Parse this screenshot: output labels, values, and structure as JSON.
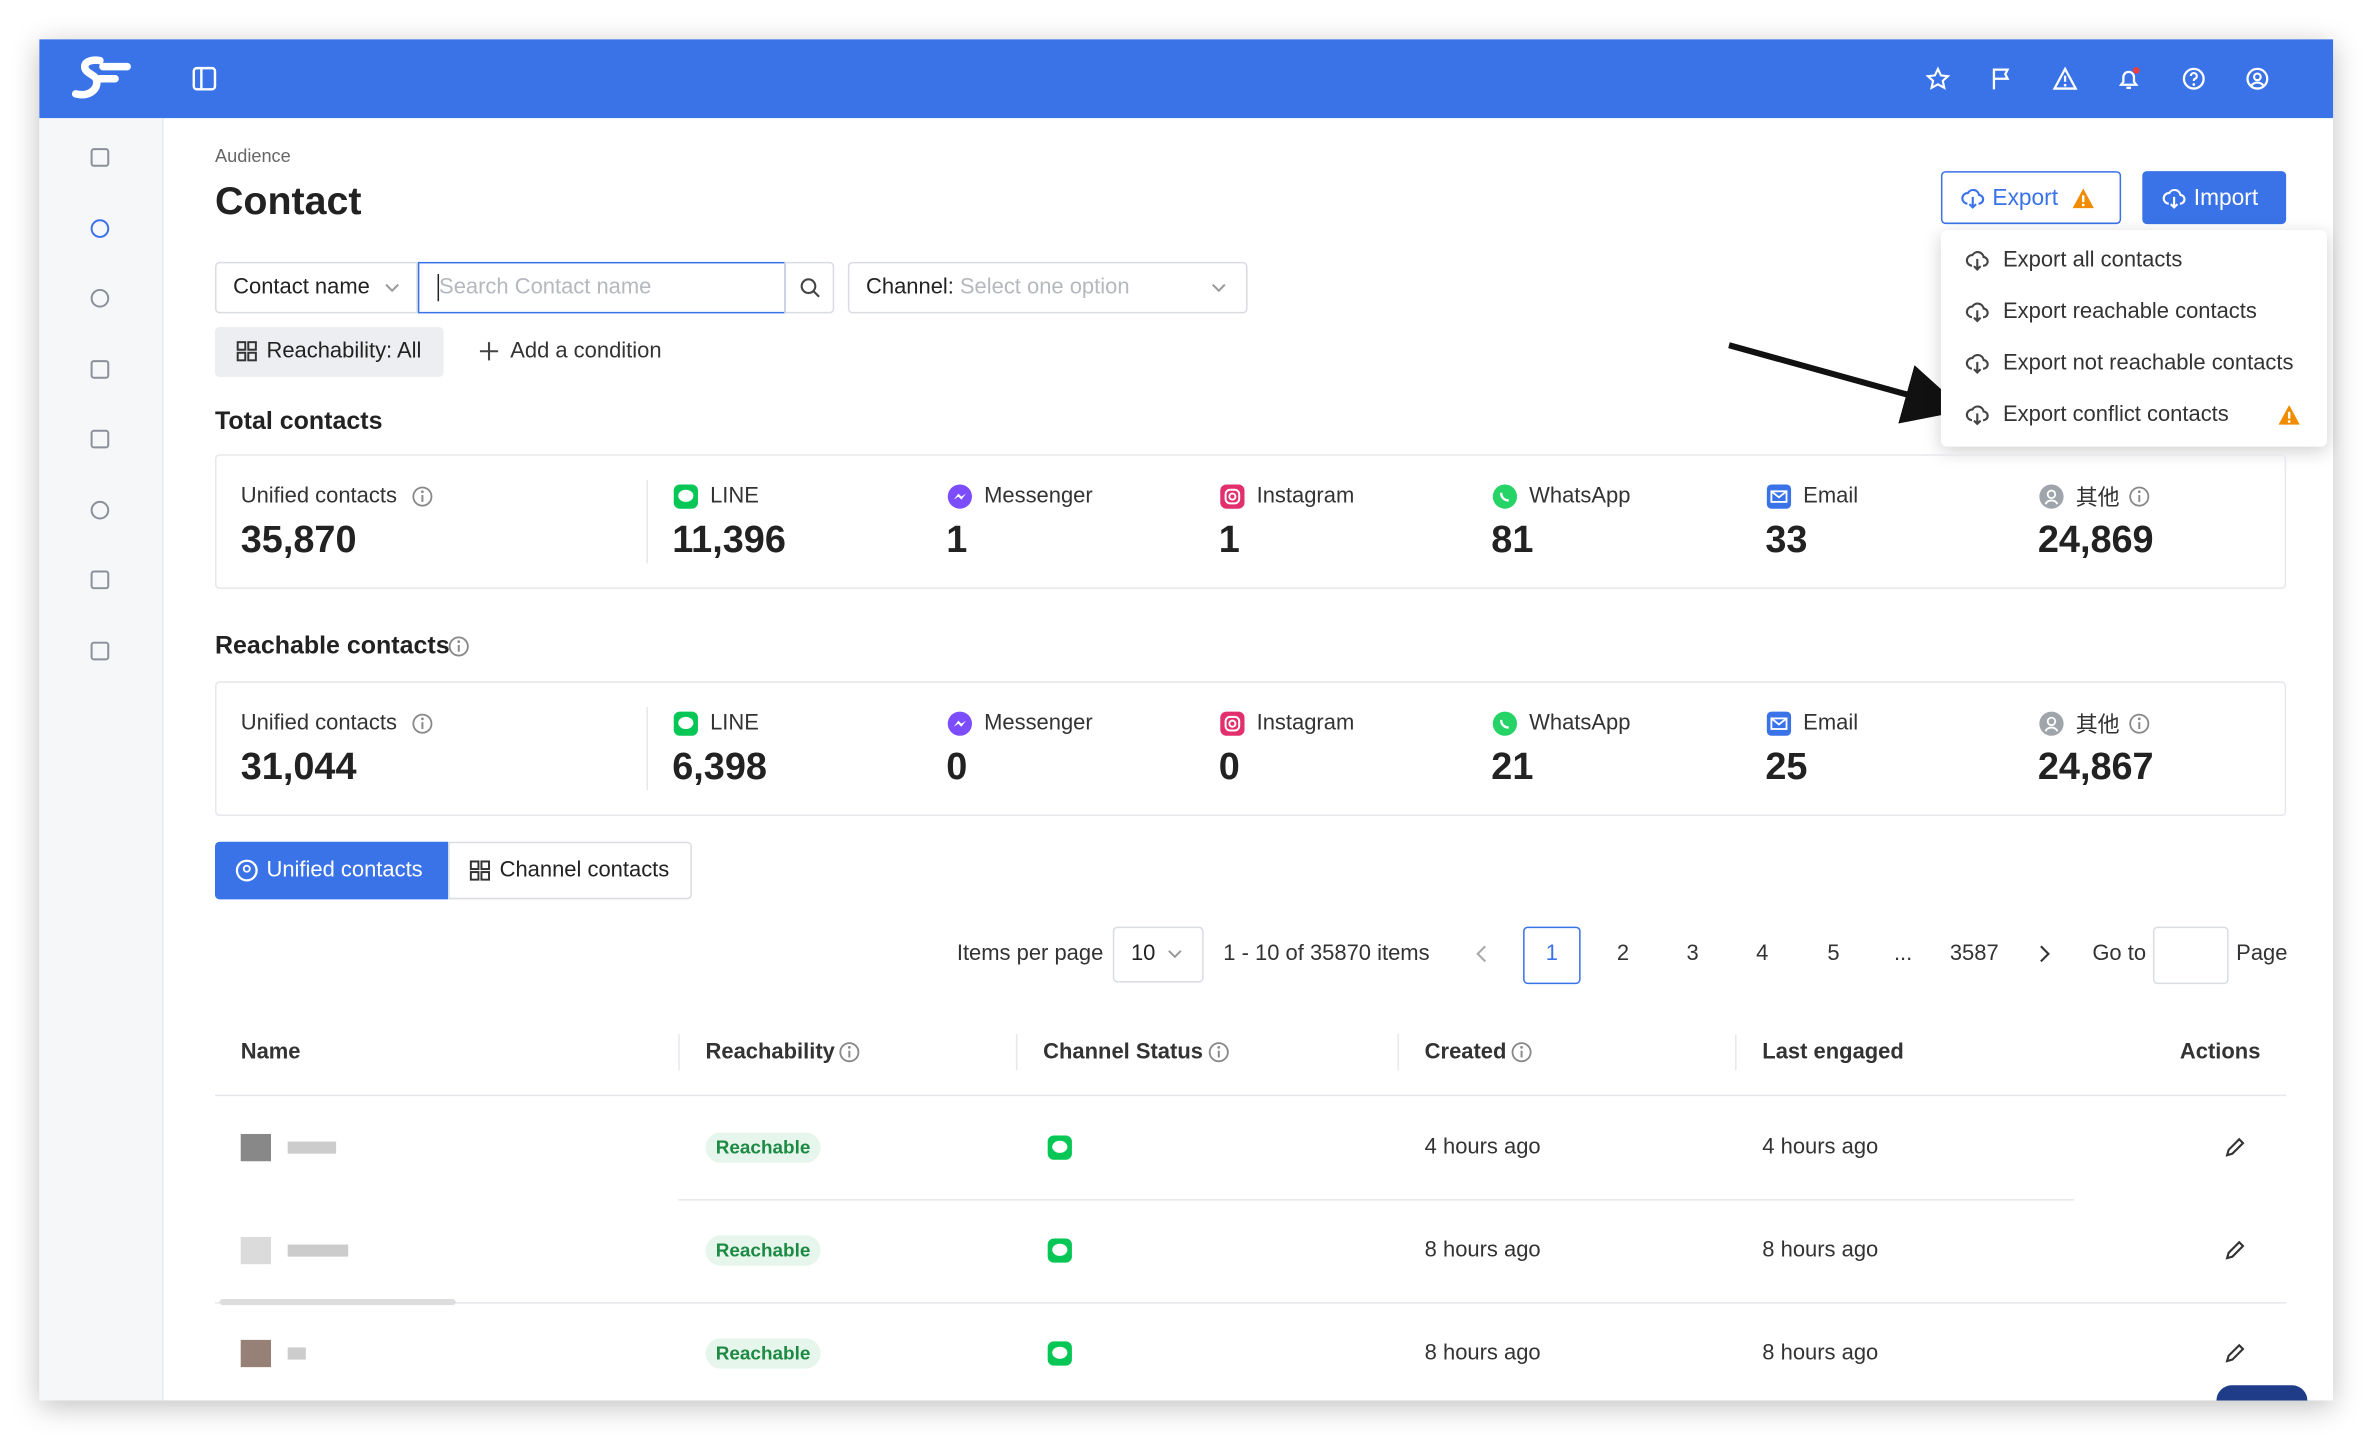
{
  "header": {
    "breadcrumb": "Audience",
    "title": "Contact"
  },
  "actions": {
    "export": "Export",
    "import": "Import"
  },
  "export_menu": [
    "Export all contacts",
    "Export reachable contacts",
    "Export not reachable contacts",
    "Export conflict contacts"
  ],
  "filters": {
    "field": "Contact name",
    "search_placeholder": "Search Contact name",
    "channel_label": "Channel:",
    "channel_placeholder": "Select one option",
    "reachability": "Reachability: All",
    "add_condition": "Add a condition"
  },
  "sections": [
    {
      "title": "Total contacts",
      "stats": [
        {
          "label": "Unified contacts",
          "value": "35,870"
        },
        {
          "label": "LINE",
          "value": "11,396"
        },
        {
          "label": "Messenger",
          "value": "1"
        },
        {
          "label": "Instagram",
          "value": "1"
        },
        {
          "label": "WhatsApp",
          "value": "81"
        },
        {
          "label": "Email",
          "value": "33"
        },
        {
          "label": "其他",
          "value": "24,869"
        }
      ]
    },
    {
      "title": "Reachable contacts",
      "stats": [
        {
          "label": "Unified contacts",
          "value": "31,044"
        },
        {
          "label": "LINE",
          "value": "6,398"
        },
        {
          "label": "Messenger",
          "value": "0"
        },
        {
          "label": "Instagram",
          "value": "0"
        },
        {
          "label": "WhatsApp",
          "value": "21"
        },
        {
          "label": "Email",
          "value": "25"
        },
        {
          "label": "其他",
          "value": "24,867"
        }
      ]
    }
  ],
  "tabs": [
    "Unified contacts",
    "Channel contacts"
  ],
  "pagination": {
    "items_per_page_label": "Items per page",
    "page_size": "10",
    "range": "1 - 10 of 35870 items",
    "pages": [
      "1",
      "2",
      "3",
      "4",
      "5",
      "...",
      "3587"
    ],
    "goto_label": "Go to",
    "page_label": "Page"
  },
  "table": {
    "columns": [
      "Name",
      "Reachability",
      "Channel Status",
      "Created",
      "Last engaged",
      "Actions"
    ],
    "rows": [
      {
        "reachability": "Reachable",
        "created": "4 hours ago",
        "last_engaged": "4 hours ago"
      },
      {
        "reachability": "Reachable",
        "created": "8 hours ago",
        "last_engaged": "8 hours ago"
      },
      {
        "reachability": "Reachable",
        "created": "8 hours ago",
        "last_engaged": "8 hours ago"
      }
    ]
  }
}
